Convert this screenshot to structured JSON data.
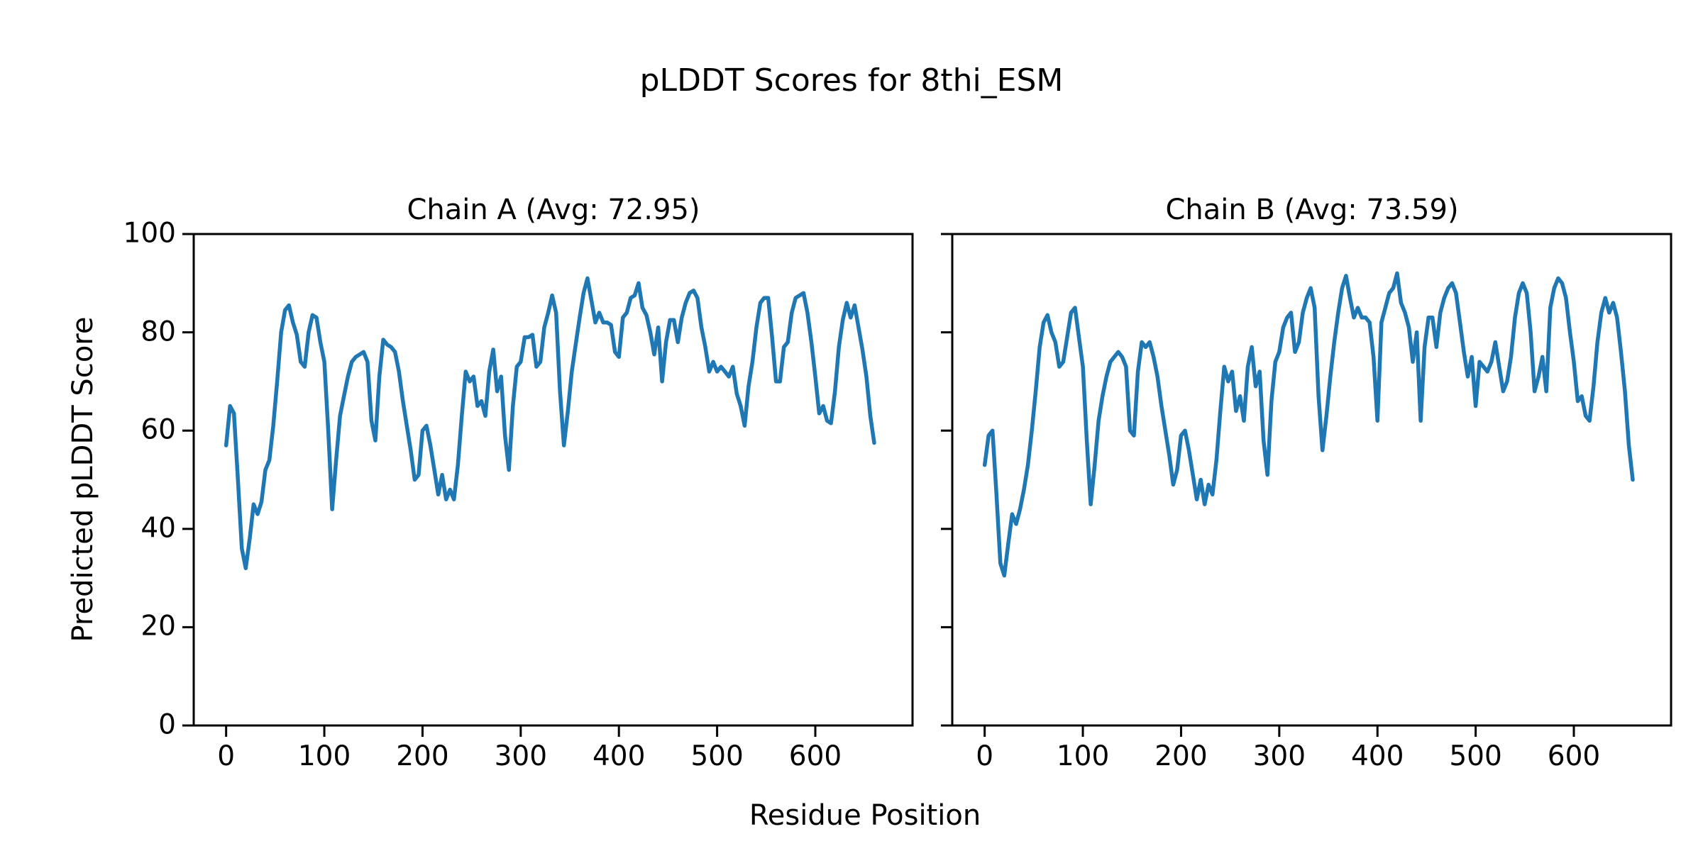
{
  "figure": {
    "title": "pLDDT Scores for 8thi_ESM",
    "background_color": "#ffffff",
    "text_color": "#000000",
    "spine_color": "#000000"
  },
  "shared": {
    "xlabel": "Residue Position",
    "ylabel": "Predicted pLDDT Score"
  },
  "chart_data": [
    {
      "type": "line",
      "name": "chain-a",
      "title": "Chain A (Avg: 72.95)",
      "avg": 72.95,
      "xlabel": "Residue Position",
      "ylabel": "Predicted pLDDT Score",
      "xlim": [
        -33,
        699
      ],
      "ylim": [
        0,
        100
      ],
      "xticks": [
        0,
        100,
        200,
        300,
        400,
        500,
        600
      ],
      "yticks": [
        0,
        20,
        40,
        60,
        80,
        100
      ],
      "show_ytick_labels": true,
      "grid": false,
      "legend": null,
      "line_color": "#1f77b4",
      "x_start": 0,
      "x_step": 4,
      "values": [
        57,
        65,
        63.5,
        50,
        36,
        32,
        38,
        45,
        43,
        45.5,
        52,
        54,
        61,
        70,
        80,
        84.5,
        85.5,
        82,
        79.5,
        74,
        73,
        80,
        83.5,
        83,
        78,
        74,
        60,
        44,
        54,
        63,
        67,
        71,
        74,
        75,
        75.5,
        76,
        74,
        62,
        58,
        71,
        78.5,
        77.5,
        77,
        76,
        72,
        66,
        61,
        56,
        50,
        51,
        60,
        61,
        57,
        52,
        47,
        51,
        46,
        48,
        46,
        53,
        63,
        72,
        70,
        71,
        65,
        66,
        63,
        72,
        76.5,
        68,
        71,
        59,
        52,
        65,
        73,
        74,
        79,
        79,
        79.5,
        73,
        74,
        81,
        84,
        87.5,
        84,
        68,
        57,
        64,
        72,
        77.5,
        83,
        88,
        91,
        86.5,
        82,
        84,
        82,
        82,
        81.5,
        76,
        75,
        83,
        84,
        87,
        87.5,
        90,
        85,
        83.5,
        80,
        75.5,
        81,
        70,
        78,
        82.5,
        82.5,
        78,
        83,
        86,
        88,
        88.5,
        87,
        81,
        77,
        72,
        74,
        72,
        73,
        72,
        71,
        73,
        67.5,
        65,
        61,
        69,
        74,
        81,
        86,
        87,
        87,
        79,
        70,
        70,
        77,
        78,
        84,
        87,
        87.5,
        88,
        84,
        78,
        71,
        63.5,
        65,
        62,
        61.5,
        68,
        77,
        82.5,
        86,
        83,
        85.5,
        81,
        76.5,
        71,
        63,
        57.5
      ]
    },
    {
      "type": "line",
      "name": "chain-b",
      "title": "Chain B (Avg: 73.59)",
      "avg": 73.59,
      "xlabel": "Residue Position",
      "ylabel": "Predicted pLDDT Score",
      "xlim": [
        -33,
        699
      ],
      "ylim": [
        0,
        100
      ],
      "xticks": [
        0,
        100,
        200,
        300,
        400,
        500,
        600
      ],
      "yticks": [
        0,
        20,
        40,
        60,
        80,
        100
      ],
      "show_ytick_labels": false,
      "grid": false,
      "legend": null,
      "line_color": "#1f77b4",
      "x_start": 0,
      "x_step": 4,
      "values": [
        53,
        59,
        60,
        47,
        33,
        30.5,
        37,
        43,
        41,
        44,
        48,
        53,
        60,
        68,
        77,
        82,
        83.5,
        80,
        78,
        73,
        74,
        79,
        84,
        85,
        79,
        73,
        58,
        45,
        53,
        62,
        67,
        71,
        74,
        75,
        76,
        75,
        73,
        60,
        59,
        72,
        78,
        77,
        78,
        75,
        71,
        65,
        60,
        55,
        49,
        52,
        59,
        60,
        56,
        51,
        46,
        50,
        45,
        49,
        47,
        54,
        64,
        73,
        70,
        72,
        64,
        67,
        62,
        73,
        77,
        69,
        72,
        58,
        51,
        66,
        74,
        76,
        81,
        83,
        84,
        76,
        78,
        84,
        87,
        89,
        85,
        67,
        56,
        63,
        71,
        78,
        84,
        89,
        91.5,
        87,
        83,
        85,
        83,
        83,
        82,
        75,
        62,
        82,
        85,
        88,
        89,
        92,
        86,
        84,
        81,
        74,
        80,
        62,
        77,
        83,
        83,
        77,
        84,
        87,
        89,
        90,
        88,
        82,
        76,
        71,
        75,
        65,
        74,
        73,
        72,
        74,
        78,
        73,
        68,
        70,
        75,
        83,
        88,
        90,
        88,
        80,
        68,
        71,
        75,
        68,
        85,
        89,
        91,
        90,
        87,
        80,
        74,
        66,
        67,
        63,
        62,
        69,
        78,
        84,
        87,
        84,
        86,
        83,
        76,
        68,
        57,
        50
      ]
    }
  ]
}
